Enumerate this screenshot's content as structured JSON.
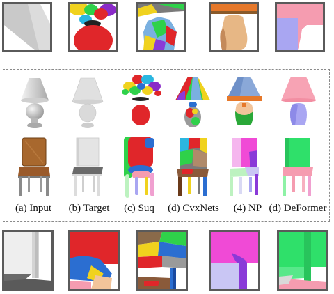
{
  "columns": [
    {
      "key": "input",
      "label": "(a) Input"
    },
    {
      "key": "target",
      "label": "(b) Target"
    },
    {
      "key": "suq",
      "label": "(c) Suq"
    },
    {
      "key": "cvxnets",
      "label": "(d) CvxNets"
    },
    {
      "key": "np",
      "label": "(4) NP"
    },
    {
      "key": "deformer",
      "label": "(d) DeFormer"
    }
  ],
  "colors": {
    "gray_light": "#e6e6e6",
    "gray_mid": "#bdbdbd",
    "gray_dark": "#7a7a7a",
    "wood": "#b06a35",
    "leather": "#a5683a",
    "red": "#e0262a",
    "green": "#2fd14a",
    "blue": "#2b6ed1",
    "yellow": "#f0d21e",
    "orange": "#e6782a",
    "pink": "#f59cb0",
    "lavender": "#a9a6f2",
    "magenta": "#f04ad6",
    "purple": "#8a3ad8",
    "mint": "#bdf2c0",
    "peach": "#f2c49a"
  }
}
